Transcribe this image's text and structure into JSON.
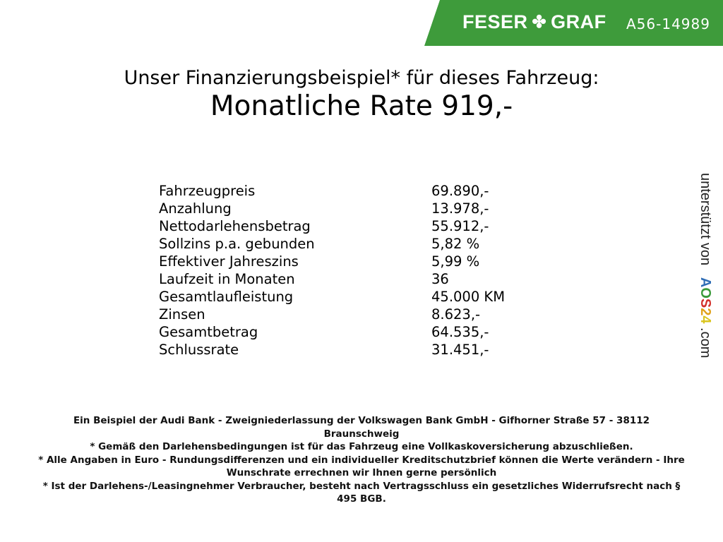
{
  "header": {
    "brand_left": "FESER",
    "brand_right": "GRAF",
    "logo_icon": "clover-icon",
    "vehicle_code": "A56-14989",
    "brand_color": "#3e9b3b"
  },
  "title": {
    "subtitle": "Unser Finanzierungsbeispiel* für dieses Fahrzeug:",
    "rate": "Monatliche Rate 919,-"
  },
  "details": [
    {
      "label": "Fahrzeugpreis",
      "value": "69.890,-"
    },
    {
      "label": "Anzahlung",
      "value": "13.978,-"
    },
    {
      "label": "Nettodarlehensbetrag",
      "value": "55.912,-"
    },
    {
      "label": "Sollzins p.a. gebunden",
      "value": "5,82 %"
    },
    {
      "label": "Effektiver Jahreszins",
      "value": "5,99 %"
    },
    {
      "label": "Laufzeit in Monaten",
      "value": "36"
    },
    {
      "label": "Gesamtlaufleistung",
      "value": "45.000 KM"
    },
    {
      "label": "Zinsen",
      "value": "8.623,-"
    },
    {
      "label": "Gesamtbetrag",
      "value": "64.535,-"
    },
    {
      "label": "Schlussrate",
      "value": "31.451,-"
    }
  ],
  "side": {
    "text": "unterstützt von",
    "logo": [
      "A",
      "O",
      "S",
      "2",
      "4"
    ],
    "domain": ".com"
  },
  "footer": [
    "Ein Beispiel der Audi Bank - Zweigniederlassung der Volkswagen Bank GmbH - Gifhorner Straße 57 - 38112 Braunschweig",
    "* Gemäß den Darlehensbedingungen ist für das Fahrzeug eine Vollkaskoversicherung abzuschließen.",
    "* Alle Angaben in Euro - Rundungsdifferenzen und ein individueller Kreditschutzbrief können die Werte verändern - Ihre Wunschrate errechnen wir Ihnen gerne persönlich",
    "* Ist der Darlehens-/Leasingnehmer Verbraucher, besteht nach Vertragsschluss ein gesetzliches Widerrufsrecht nach § 495 BGB."
  ]
}
